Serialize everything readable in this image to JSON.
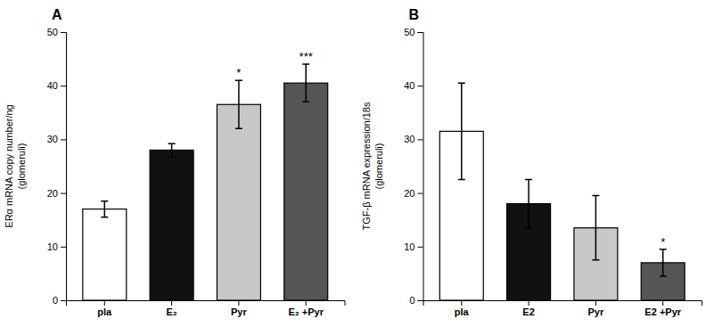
{
  "chart_data": [
    {
      "type": "bar",
      "title": "A",
      "categories": [
        "pla",
        "E₂",
        "Pyr",
        "E₂ +Pyr"
      ],
      "values": [
        17.0,
        28.0,
        36.5,
        40.5
      ],
      "errors": [
        1.5,
        1.2,
        4.5,
        3.5
      ],
      "colors": [
        "#ffffff",
        "#111111",
        "#c8c8c8",
        "#555555"
      ],
      "significance": [
        null,
        null,
        "*",
        "***"
      ],
      "y_label": "ERα mRNA copy number/ng\n(glomeruli)",
      "ylim": [
        0,
        50
      ],
      "yticks": [
        0,
        10,
        20,
        30,
        40,
        50
      ],
      "grid": false
    },
    {
      "type": "bar",
      "title": "B",
      "categories": [
        "pla",
        "E2",
        "Pyr",
        "E2 +Pyr"
      ],
      "values": [
        31.5,
        18.0,
        13.5,
        7.0
      ],
      "errors": [
        9.0,
        4.5,
        6.0,
        2.5
      ],
      "colors": [
        "#ffffff",
        "#111111",
        "#c8c8c8",
        "#555555"
      ],
      "significance": [
        null,
        null,
        null,
        "*"
      ],
      "y_label": "TGF-β mRNA expression/18s\n(glomeruli)",
      "ylim": [
        0,
        50
      ],
      "yticks": [
        0,
        10,
        20,
        30,
        40,
        50
      ],
      "grid": false
    }
  ]
}
